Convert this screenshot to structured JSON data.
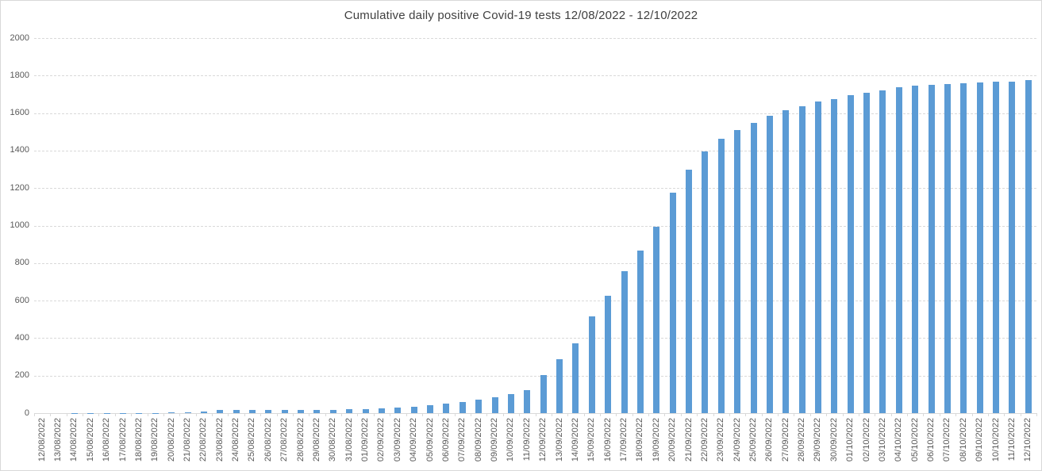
{
  "chart": {
    "title": "Cumulative daily positive Covid-19 tests 12/08/2022 - 12/10/2022"
  },
  "chart_data": {
    "type": "bar",
    "title": "Cumulative daily positive Covid-19 tests 12/08/2022 - 12/10/2022",
    "xlabel": "",
    "ylabel": "",
    "ylim": [
      0,
      2000
    ],
    "ytick_interval": 200,
    "yticks": [
      0,
      200,
      400,
      600,
      800,
      1000,
      1200,
      1400,
      1600,
      1800,
      2000
    ],
    "grid": true,
    "legend": false,
    "bar_color": "#5b9bd5",
    "gridline_color": "#d9d9d9",
    "axis_label_color": "#595959",
    "title_color": "#404040",
    "categories": [
      "12/08/2022",
      "13/08/2022",
      "14/08/2022",
      "15/08/2022",
      "16/08/2022",
      "17/08/2022",
      "18/08/2022",
      "19/08/2022",
      "20/08/2022",
      "21/08/2022",
      "22/08/2022",
      "23/08/2022",
      "24/08/2022",
      "25/08/2022",
      "26/08/2022",
      "27/08/2022",
      "28/08/2022",
      "29/08/2022",
      "30/08/2022",
      "31/08/2022",
      "01/09/2022",
      "02/09/2022",
      "03/09/2022",
      "04/09/2022",
      "05/09/2022",
      "06/09/2022",
      "07/09/2022",
      "08/09/2022",
      "09/09/2022",
      "10/09/2022",
      "11/09/2022",
      "12/09/2022",
      "13/09/2022",
      "14/09/2022",
      "15/09/2022",
      "16/09/2022",
      "17/09/2022",
      "18/09/2022",
      "19/09/2022",
      "20/09/2022",
      "21/09/2022",
      "22/09/2022",
      "23/09/2022",
      "24/09/2022",
      "25/09/2022",
      "26/09/2022",
      "27/09/2022",
      "28/09/2022",
      "29/09/2022",
      "30/09/2022",
      "01/10/2022",
      "02/10/2022",
      "03/10/2022",
      "04/10/2022",
      "05/10/2022",
      "06/10/2022",
      "07/10/2022",
      "08/10/2022",
      "09/10/2022",
      "10/10/2022",
      "11/10/2022",
      "12/10/2022"
    ],
    "values": [
      0,
      0,
      1,
      1,
      1,
      2,
      2,
      2,
      3,
      4,
      8,
      16,
      16,
      17,
      17,
      18,
      18,
      18,
      19,
      22,
      23,
      26,
      29,
      33,
      42,
      50,
      58,
      71,
      85,
      102,
      123,
      204,
      289,
      374,
      517,
      624,
      758,
      865,
      995,
      1175,
      1300,
      1395,
      1465,
      1511,
      1547,
      1586,
      1617,
      1638,
      1662,
      1676,
      1694,
      1710,
      1723,
      1737,
      1745,
      1749,
      1755,
      1759,
      1764,
      1767,
      1768,
      1778
    ]
  }
}
